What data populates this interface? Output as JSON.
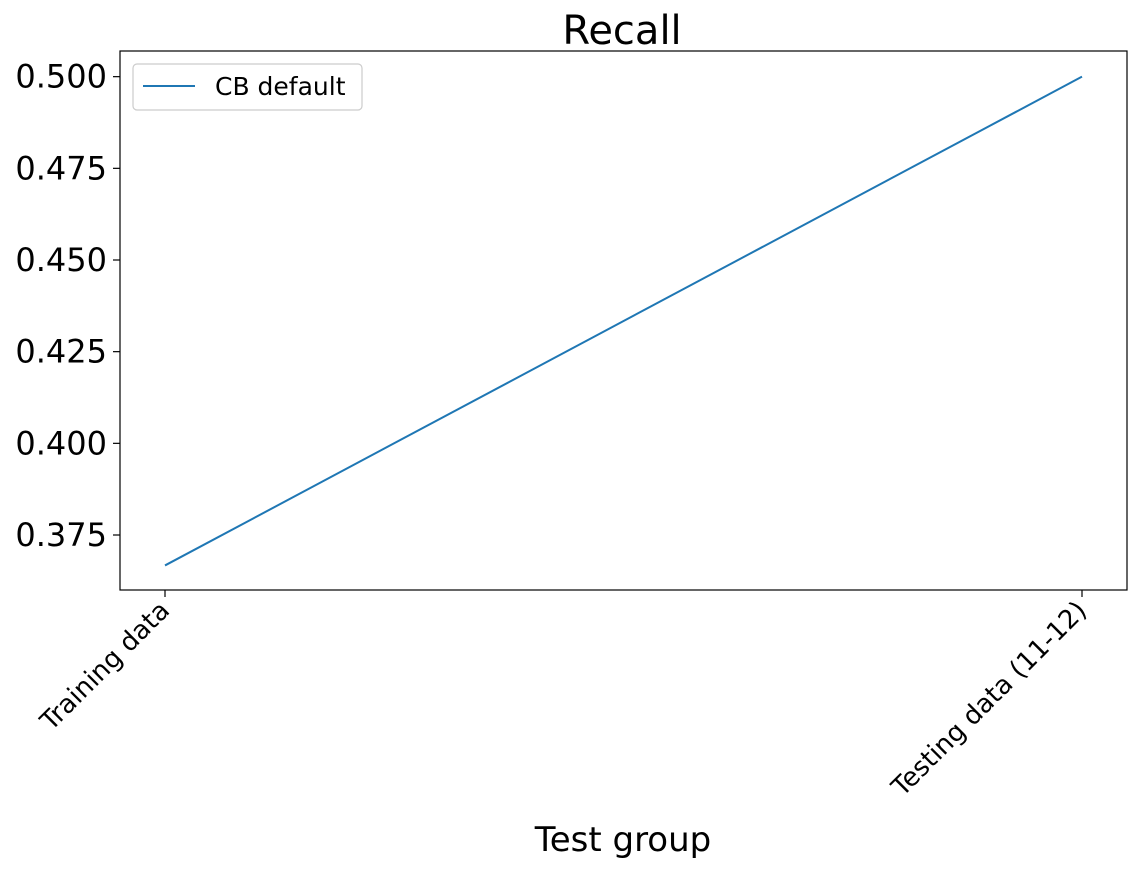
{
  "chart_data": {
    "type": "line",
    "title": "Recall",
    "xlabel": "Test group",
    "ylabel": "",
    "categories": [
      "Training data",
      "Testing data (11-12)"
    ],
    "series": [
      {
        "name": "CB default",
        "values": [
          0.3667,
          0.5
        ],
        "color": "#1f77b4"
      }
    ],
    "ylim": [
      0.36,
      0.507
    ],
    "yticks": [
      0.375,
      0.4,
      0.425,
      0.45,
      0.475,
      0.5
    ],
    "ytick_labels": [
      "0.375",
      "0.400",
      "0.425",
      "0.450",
      "0.475",
      "0.500"
    ],
    "grid": false,
    "legend_position": "top-left"
  }
}
